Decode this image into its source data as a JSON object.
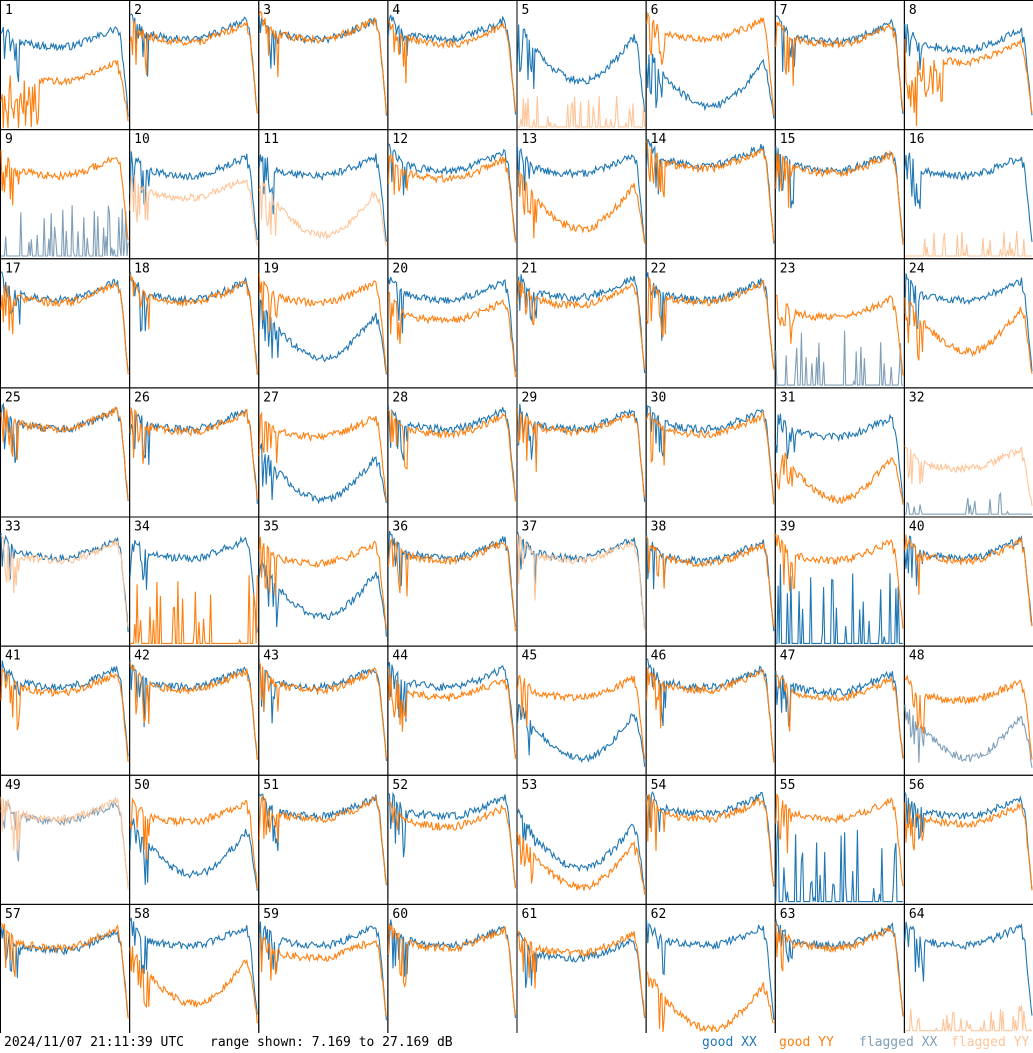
{
  "footer": {
    "timestamp": "2024/11/07 21:11:39 UTC",
    "range_text": "range shown: 7.169 to 27.169 dB",
    "legend": {
      "good_xx": "good XX",
      "good_yy": "good YY",
      "flagged_xx": "flagged XX",
      "flagged_yy": "flagged YY"
    }
  },
  "colors": {
    "good_xx": "#1f77b4",
    "good_yy": "#ff7f0e",
    "flagged_xx": "#7f9fb8",
    "flagged_yy": "#ffc599"
  },
  "chart_data": {
    "type": "line",
    "layout": "8x8 small multiples",
    "ylim": [
      7.169,
      27.169
    ],
    "y_unit": "dB",
    "series_names": [
      "good XX",
      "good YY",
      "flagged XX",
      "flagged YY"
    ],
    "panels": [
      {
        "label": "1",
        "xx": {
          "status": "good",
          "shape": "std",
          "lvl": 0.72
        },
        "yy": {
          "status": "good",
          "shape": "burst",
          "lvl": 0.45
        }
      },
      {
        "label": "2",
        "xx": {
          "status": "good",
          "shape": "std",
          "lvl": 0.78
        },
        "yy": {
          "status": "good",
          "shape": "std",
          "lvl": 0.76
        }
      },
      {
        "label": "3",
        "xx": {
          "status": "good",
          "shape": "std",
          "lvl": 0.78
        },
        "yy": {
          "status": "good",
          "shape": "std",
          "lvl": 0.78
        }
      },
      {
        "label": "4",
        "xx": {
          "status": "good",
          "shape": "std",
          "lvl": 0.78
        },
        "yy": {
          "status": "good",
          "shape": "std",
          "lvl": 0.74
        }
      },
      {
        "label": "5",
        "xx": {
          "status": "good",
          "shape": "sag",
          "lvl": 0.7
        },
        "yy": {
          "status": "flagged",
          "shape": "spikes",
          "lvl": 0.12
        }
      },
      {
        "label": "6",
        "xx": {
          "status": "good",
          "shape": "sag",
          "lvl": 0.5
        },
        "yy": {
          "status": "good",
          "shape": "std",
          "lvl": 0.78
        }
      },
      {
        "label": "7",
        "xx": {
          "status": "good",
          "shape": "std",
          "lvl": 0.76
        },
        "yy": {
          "status": "good",
          "shape": "std",
          "lvl": 0.74
        }
      },
      {
        "label": "8",
        "xx": {
          "status": "good",
          "shape": "std",
          "lvl": 0.7
        },
        "yy": {
          "status": "good",
          "shape": "burst",
          "lvl": 0.6
        }
      },
      {
        "label": "9",
        "xx": {
          "status": "flagged",
          "shape": "spikes",
          "lvl": 0.2
        },
        "yy": {
          "status": "good",
          "shape": "std",
          "lvl": 0.72
        }
      },
      {
        "label": "10",
        "xx": {
          "status": "good",
          "shape": "std",
          "lvl": 0.72
        },
        "yy": {
          "status": "flagged",
          "shape": "std",
          "lvl": 0.55
        }
      },
      {
        "label": "11",
        "xx": {
          "status": "good",
          "shape": "std",
          "lvl": 0.72
        },
        "yy": {
          "status": "flagged",
          "shape": "sag",
          "lvl": 0.5
        }
      },
      {
        "label": "12",
        "xx": {
          "status": "good",
          "shape": "std",
          "lvl": 0.76
        },
        "yy": {
          "status": "good",
          "shape": "std",
          "lvl": 0.7
        }
      },
      {
        "label": "13",
        "xx": {
          "status": "good",
          "shape": "std",
          "lvl": 0.74
        },
        "yy": {
          "status": "good",
          "shape": "sag",
          "lvl": 0.55
        }
      },
      {
        "label": "14",
        "xx": {
          "status": "good",
          "shape": "std",
          "lvl": 0.8
        },
        "yy": {
          "status": "good",
          "shape": "std",
          "lvl": 0.78
        }
      },
      {
        "label": "15",
        "xx": {
          "status": "good",
          "shape": "std",
          "lvl": 0.76
        },
        "yy": {
          "status": "good",
          "shape": "std",
          "lvl": 0.74
        }
      },
      {
        "label": "16",
        "xx": {
          "status": "good",
          "shape": "std",
          "lvl": 0.72
        },
        "yy": {
          "status": "flagged",
          "shape": "spikes",
          "lvl": 0.1
        }
      },
      {
        "label": "17",
        "xx": {
          "status": "good",
          "shape": "std",
          "lvl": 0.76
        },
        "yy": {
          "status": "good",
          "shape": "std",
          "lvl": 0.74
        }
      },
      {
        "label": "18",
        "xx": {
          "status": "good",
          "shape": "std",
          "lvl": 0.76
        },
        "yy": {
          "status": "good",
          "shape": "std",
          "lvl": 0.74
        }
      },
      {
        "label": "19",
        "xx": {
          "status": "good",
          "shape": "sag",
          "lvl": 0.55
        },
        "yy": {
          "status": "good",
          "shape": "std",
          "lvl": 0.74
        }
      },
      {
        "label": "20",
        "xx": {
          "status": "good",
          "shape": "std",
          "lvl": 0.76
        },
        "yy": {
          "status": "good",
          "shape": "std",
          "lvl": 0.6
        }
      },
      {
        "label": "21",
        "xx": {
          "status": "good",
          "shape": "std",
          "lvl": 0.78
        },
        "yy": {
          "status": "good",
          "shape": "std",
          "lvl": 0.72
        }
      },
      {
        "label": "22",
        "xx": {
          "status": "good",
          "shape": "std",
          "lvl": 0.76
        },
        "yy": {
          "status": "good",
          "shape": "std",
          "lvl": 0.74
        }
      },
      {
        "label": "23",
        "xx": {
          "status": "flagged",
          "shape": "spikes",
          "lvl": 0.2
        },
        "yy": {
          "status": "good",
          "shape": "std",
          "lvl": 0.62
        }
      },
      {
        "label": "24",
        "xx": {
          "status": "good",
          "shape": "std",
          "lvl": 0.76
        },
        "yy": {
          "status": "good",
          "shape": "sag",
          "lvl": 0.6
        }
      },
      {
        "label": "25",
        "xx": {
          "status": "good",
          "shape": "std",
          "lvl": 0.76
        },
        "yy": {
          "status": "good",
          "shape": "std",
          "lvl": 0.76
        }
      },
      {
        "label": "26",
        "xx": {
          "status": "good",
          "shape": "std",
          "lvl": 0.76
        },
        "yy": {
          "status": "good",
          "shape": "std",
          "lvl": 0.74
        }
      },
      {
        "label": "27",
        "xx": {
          "status": "good",
          "shape": "sag",
          "lvl": 0.45
        },
        "yy": {
          "status": "good",
          "shape": "std",
          "lvl": 0.7
        }
      },
      {
        "label": "28",
        "xx": {
          "status": "good",
          "shape": "std",
          "lvl": 0.76
        },
        "yy": {
          "status": "good",
          "shape": "std",
          "lvl": 0.72
        }
      },
      {
        "label": "29",
        "xx": {
          "status": "good",
          "shape": "std",
          "lvl": 0.76
        },
        "yy": {
          "status": "good",
          "shape": "std",
          "lvl": 0.74
        }
      },
      {
        "label": "30",
        "xx": {
          "status": "good",
          "shape": "std",
          "lvl": 0.76
        },
        "yy": {
          "status": "good",
          "shape": "std",
          "lvl": 0.72
        }
      },
      {
        "label": "31",
        "xx": {
          "status": "good",
          "shape": "std",
          "lvl": 0.7
        },
        "yy": {
          "status": "good",
          "shape": "sag",
          "lvl": 0.45
        }
      },
      {
        "label": "32",
        "xx": {
          "status": "flagged",
          "shape": "spikes",
          "lvl": 0.08
        },
        "yy": {
          "status": "flagged",
          "shape": "std",
          "lvl": 0.45
        }
      },
      {
        "label": "33",
        "xx": {
          "status": "good",
          "shape": "std",
          "lvl": 0.76
        },
        "yy": {
          "status": "flagged",
          "shape": "std",
          "lvl": 0.74
        }
      },
      {
        "label": "34",
        "xx": {
          "status": "good",
          "shape": "std",
          "lvl": 0.76
        },
        "yy": {
          "status": "good",
          "shape": "spikes",
          "lvl": 0.25
        }
      },
      {
        "label": "35",
        "xx": {
          "status": "good",
          "shape": "sag",
          "lvl": 0.55
        },
        "yy": {
          "status": "good",
          "shape": "std",
          "lvl": 0.72
        }
      },
      {
        "label": "36",
        "xx": {
          "status": "good",
          "shape": "std",
          "lvl": 0.76
        },
        "yy": {
          "status": "good",
          "shape": "std",
          "lvl": 0.74
        }
      },
      {
        "label": "37",
        "xx": {
          "status": "good",
          "shape": "std",
          "lvl": 0.76
        },
        "yy": {
          "status": "flagged",
          "shape": "std",
          "lvl": 0.74
        }
      },
      {
        "label": "38",
        "xx": {
          "status": "good",
          "shape": "std",
          "lvl": 0.74
        },
        "yy": {
          "status": "good",
          "shape": "std",
          "lvl": 0.72
        }
      },
      {
        "label": "39",
        "xx": {
          "status": "good",
          "shape": "spikes",
          "lvl": 0.3
        },
        "yy": {
          "status": "good",
          "shape": "std",
          "lvl": 0.74
        }
      },
      {
        "label": "40",
        "xx": {
          "status": "good",
          "shape": "std",
          "lvl": 0.76
        },
        "yy": {
          "status": "good",
          "shape": "std",
          "lvl": 0.74
        }
      },
      {
        "label": "41",
        "xx": {
          "status": "good",
          "shape": "std",
          "lvl": 0.76
        },
        "yy": {
          "status": "good",
          "shape": "std",
          "lvl": 0.72
        }
      },
      {
        "label": "42",
        "xx": {
          "status": "good",
          "shape": "std",
          "lvl": 0.76
        },
        "yy": {
          "status": "good",
          "shape": "std",
          "lvl": 0.74
        }
      },
      {
        "label": "43",
        "xx": {
          "status": "good",
          "shape": "std",
          "lvl": 0.76
        },
        "yy": {
          "status": "good",
          "shape": "std",
          "lvl": 0.74
        }
      },
      {
        "label": "44",
        "xx": {
          "status": "good",
          "shape": "std",
          "lvl": 0.76
        },
        "yy": {
          "status": "good",
          "shape": "std",
          "lvl": 0.68
        }
      },
      {
        "label": "45",
        "xx": {
          "status": "good",
          "shape": "sag",
          "lvl": 0.45
        },
        "yy": {
          "status": "good",
          "shape": "std",
          "lvl": 0.68
        }
      },
      {
        "label": "46",
        "xx": {
          "status": "good",
          "shape": "std",
          "lvl": 0.76
        },
        "yy": {
          "status": "good",
          "shape": "std",
          "lvl": 0.74
        }
      },
      {
        "label": "47",
        "xx": {
          "status": "good",
          "shape": "std",
          "lvl": 0.72
        },
        "yy": {
          "status": "good",
          "shape": "std",
          "lvl": 0.68
        }
      },
      {
        "label": "48",
        "xx": {
          "status": "flagged",
          "shape": "sag",
          "lvl": 0.45
        },
        "yy": {
          "status": "good",
          "shape": "std",
          "lvl": 0.66
        }
      },
      {
        "label": "49",
        "xx": {
          "status": "flagged",
          "shape": "std",
          "lvl": 0.72
        },
        "yy": {
          "status": "flagged",
          "shape": "std",
          "lvl": 0.74
        }
      },
      {
        "label": "50",
        "xx": {
          "status": "good",
          "shape": "sag",
          "lvl": 0.55
        },
        "yy": {
          "status": "good",
          "shape": "std",
          "lvl": 0.72
        }
      },
      {
        "label": "51",
        "xx": {
          "status": "good",
          "shape": "std",
          "lvl": 0.76
        },
        "yy": {
          "status": "good",
          "shape": "std",
          "lvl": 0.74
        }
      },
      {
        "label": "52",
        "xx": {
          "status": "good",
          "shape": "std",
          "lvl": 0.76
        },
        "yy": {
          "status": "good",
          "shape": "std",
          "lvl": 0.68
        }
      },
      {
        "label": "53",
        "xx": {
          "status": "good",
          "shape": "sag",
          "lvl": 0.6
        },
        "yy": {
          "status": "good",
          "shape": "sag",
          "lvl": 0.45
        }
      },
      {
        "label": "54",
        "xx": {
          "status": "good",
          "shape": "std",
          "lvl": 0.78
        },
        "yy": {
          "status": "good",
          "shape": "std",
          "lvl": 0.74
        }
      },
      {
        "label": "55",
        "xx": {
          "status": "good",
          "shape": "spikes",
          "lvl": 0.3
        },
        "yy": {
          "status": "good",
          "shape": "std",
          "lvl": 0.74
        }
      },
      {
        "label": "56",
        "xx": {
          "status": "good",
          "shape": "std",
          "lvl": 0.76
        },
        "yy": {
          "status": "good",
          "shape": "std",
          "lvl": 0.7
        }
      },
      {
        "label": "57",
        "xx": {
          "status": "good",
          "shape": "std",
          "lvl": 0.72
        },
        "yy": {
          "status": "good",
          "shape": "std",
          "lvl": 0.74
        }
      },
      {
        "label": "58",
        "xx": {
          "status": "good",
          "shape": "std",
          "lvl": 0.76
        },
        "yy": {
          "status": "good",
          "shape": "sag",
          "lvl": 0.55
        }
      },
      {
        "label": "59",
        "xx": {
          "status": "good",
          "shape": "std",
          "lvl": 0.76
        },
        "yy": {
          "status": "good",
          "shape": "std",
          "lvl": 0.66
        }
      },
      {
        "label": "60",
        "xx": {
          "status": "good",
          "shape": "std",
          "lvl": 0.76
        },
        "yy": {
          "status": "good",
          "shape": "std",
          "lvl": 0.74
        }
      },
      {
        "label": "61",
        "xx": {
          "status": "good",
          "shape": "std",
          "lvl": 0.66
        },
        "yy": {
          "status": "good",
          "shape": "std",
          "lvl": 0.7
        }
      },
      {
        "label": "62",
        "xx": {
          "status": "good",
          "shape": "std",
          "lvl": 0.76
        },
        "yy": {
          "status": "good",
          "shape": "sag",
          "lvl": 0.35
        }
      },
      {
        "label": "63",
        "xx": {
          "status": "good",
          "shape": "std",
          "lvl": 0.76
        },
        "yy": {
          "status": "good",
          "shape": "std",
          "lvl": 0.74
        }
      },
      {
        "label": "64",
        "xx": {
          "status": "good",
          "shape": "std",
          "lvl": 0.76
        },
        "yy": {
          "status": "flagged",
          "shape": "spikes",
          "lvl": 0.1
        }
      }
    ]
  }
}
